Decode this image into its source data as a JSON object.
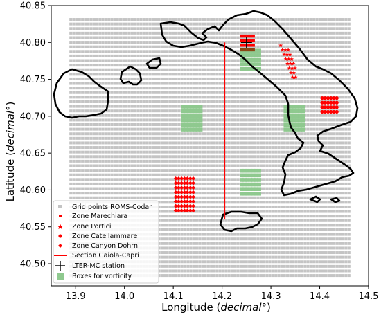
{
  "chart_data": {
    "type": "scatter",
    "xlabel_prefix": "Longitude (",
    "xlabel_unit": "decimal°",
    "xlabel_suffix": ")",
    "ylabel_prefix": "Latitude (",
    "ylabel_unit": "decimal°",
    "ylabel_suffix": ")",
    "xlim": [
      13.85,
      14.5
    ],
    "ylim": [
      40.47,
      40.85
    ],
    "x_ticks": [
      "13.9",
      "14.0",
      "14.1",
      "14.2",
      "14.3",
      "14.4",
      "14.5"
    ],
    "y_ticks": [
      "40.50",
      "40.55",
      "40.60",
      "40.65",
      "40.70",
      "40.75",
      "40.80",
      "40.85"
    ],
    "grid": false,
    "legend_position": "bottom-left",
    "legend": [
      {
        "label": "Grid points ROMS-Codar",
        "marker": "square",
        "color": "#c4c4c4"
      },
      {
        "label": "Zone Marechiara",
        "marker": "small-square",
        "color": "#ff0000"
      },
      {
        "label": "Zone Portici",
        "marker": "star",
        "color": "#ff0000"
      },
      {
        "label": "Zone Catellammare",
        "marker": "circle",
        "color": "#ff0000"
      },
      {
        "label": "Zone Canyon Dohrn",
        "marker": "diamond",
        "color": "#ff0000"
      },
      {
        "label": "Section Gaiola-Capri",
        "marker": "line",
        "color": "#ff0000"
      },
      {
        "label": "LTER-MC station",
        "marker": "plus",
        "color": "#000000"
      },
      {
        "label": "Boxes for vorticity",
        "marker": "big-square",
        "color": "#8fc98f"
      }
    ],
    "grid_points": {
      "x_range": [
        13.89,
        14.46
      ],
      "y_range": [
        40.484,
        40.836
      ],
      "step_x": 0.006,
      "step_y": 0.0062,
      "color": "#c4c4c4"
    },
    "vorticity_boxes": [
      {
        "x_range": [
          14.12,
          14.16
        ],
        "y_range": [
          40.682,
          40.716
        ]
      },
      {
        "x_range": [
          14.24,
          14.28
        ],
        "y_range": [
          40.764,
          40.792
        ]
      },
      {
        "x_range": [
          14.24,
          14.28
        ],
        "y_range": [
          40.595,
          40.632
        ]
      },
      {
        "x_range": [
          14.33,
          14.37
        ],
        "y_range": [
          40.682,
          40.716
        ]
      }
    ],
    "zone_marechiara": {
      "x_range": [
        14.24,
        14.265
      ],
      "y_range": [
        40.79,
        40.813
      ]
    },
    "zone_portici": {
      "x_range": [
        14.32,
        14.35
      ],
      "y_range": [
        40.752,
        40.796
      ]
    },
    "zone_catellammare": {
      "x_range": [
        14.405,
        14.435
      ],
      "y_range": [
        40.706,
        40.729
      ]
    },
    "zone_canyon_dohrn": {
      "x_range": [
        14.105,
        14.145
      ],
      "y_range": [
        40.572,
        40.616
      ]
    },
    "section_gaiola_capri": {
      "x": 14.205,
      "y": [
        40.56,
        40.8
      ]
    },
    "lter_mc_station": {
      "x": 14.25,
      "y": 40.8
    }
  },
  "colors": {
    "grid_point": "#c4c4c4",
    "zone": "#ff0000",
    "vorticity": "#8fc98f",
    "marechiara_overlap": "#8b4513",
    "coast": "#000000"
  }
}
